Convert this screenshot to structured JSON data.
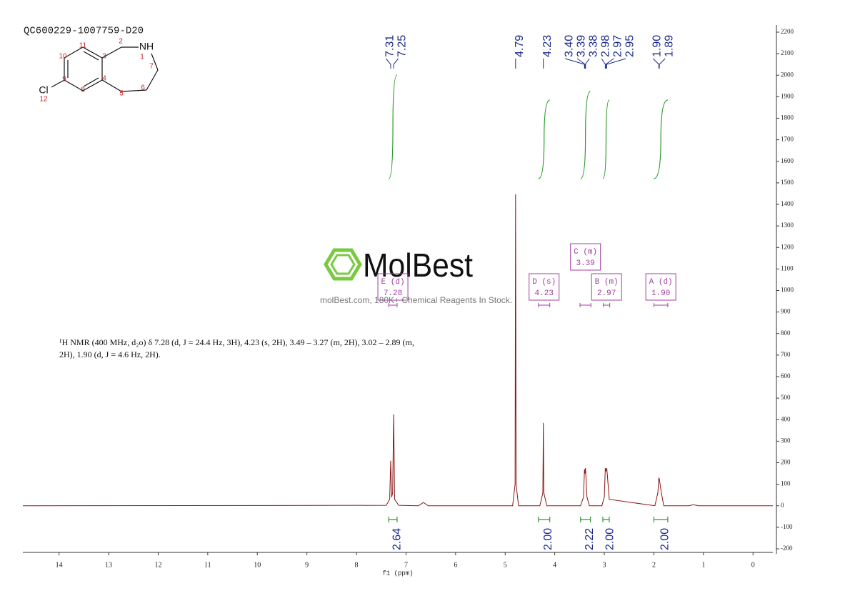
{
  "chart_data": {
    "type": "line",
    "title": "QC600229-1007759-D20",
    "xlabel": "f1 (ppm)",
    "xlim": [
      14.73,
      -0.4
    ],
    "xticks": [
      14,
      13,
      12,
      11,
      10,
      9,
      8,
      7,
      6,
      5,
      4,
      3,
      2,
      1,
      0
    ],
    "ylim": [
      -200,
      2200
    ],
    "yticks": [
      -200,
      -100,
      0,
      100,
      200,
      300,
      400,
      500,
      600,
      700,
      800,
      900,
      1000,
      1100,
      1200,
      1300,
      1400,
      1500,
      1600,
      1700,
      1800,
      1900,
      2000,
      2100,
      2200
    ],
    "y_axis_side": "right",
    "x": [
      14.73,
      7.4,
      7.33,
      7.31,
      7.29,
      7.27,
      7.25,
      7.23,
      7.15,
      6.75,
      6.65,
      6.55,
      4.85,
      4.8,
      4.79,
      4.78,
      4.73,
      4.3,
      4.24,
      4.23,
      4.22,
      4.16,
      3.48,
      3.42,
      3.4,
      3.39,
      3.38,
      3.35,
      3.3,
      3.05,
      3.0,
      2.98,
      2.97,
      2.95,
      2.9,
      1.98,
      1.92,
      1.9,
      1.89,
      1.85,
      1.8,
      1.3,
      1.2,
      1.1,
      -0.4
    ],
    "series": [
      {
        "color": "#8b1414",
        "values": [
          0,
          2,
          30,
          209,
          40,
          60,
          425,
          30,
          2,
          0,
          15,
          0,
          0,
          100,
          1447,
          100,
          0,
          0,
          60,
          385,
          60,
          0,
          0,
          40,
          170,
          150,
          175,
          40,
          0,
          0,
          40,
          175,
          160,
          175,
          30,
          0,
          60,
          130,
          125,
          60,
          0,
          0,
          5,
          0,
          0
        ]
      }
    ],
    "peak_labels": [
      7.31,
      7.25,
      4.79,
      4.23,
      {
        "value": 3.4,
        "label": "3.40"
      },
      3.39,
      3.38,
      2.98,
      2.97,
      2.95,
      {
        "value": 1.9,
        "label": "1.90"
      },
      1.89
    ],
    "peak_label_color": "#1c2a8c",
    "integrals": [
      {
        "from": 7.35,
        "to": 7.18,
        "value": 2.64
      },
      {
        "from": 4.33,
        "to": 4.1,
        "value": {
          "value": 2,
          "label": "2.00"
        }
      },
      {
        "from": 3.48,
        "to": 3.28,
        "value": 2.22
      },
      {
        "from": 3.03,
        "to": 2.9,
        "value": {
          "value": 2,
          "label": "2.00"
        }
      },
      {
        "from": 2.0,
        "to": 1.72,
        "value": {
          "value": 2,
          "label": "2.00"
        }
      }
    ],
    "integral_color": "#2e9a2e",
    "multiplets": [
      {
        "name": "E (d)",
        "shift": 7.28,
        "from": 7.35,
        "to": 7.18
      },
      {
        "name": "D (s)",
        "shift": 4.23,
        "from": 4.33,
        "to": 4.1
      },
      {
        "name": "C (m)",
        "shift": 3.39,
        "from": 3.49,
        "to": 3.27
      },
      {
        "name": "B (m)",
        "shift": 2.97,
        "from": 3.02,
        "to": 2.89
      },
      {
        "name": "A (d)",
        "shift": {
          "value": 1.9,
          "label": "1.90"
        },
        "from": 2.0,
        "to": 1.72
      }
    ],
    "multiplet_color": "#a040a0",
    "annotation": [
      "¹H NMR (400 MHz, d₂o) δ 7.28 (d, J = 24.4 Hz, 3H), 4.23 (s, 2H), 3.49 – 3.27 (m, 2H), 3.02 – 2.89 (m,",
      "2H), 1.90 (d, J = 4.6 Hz, 2H)."
    ]
  },
  "structure": {
    "atoms": [
      "NH",
      "Cl"
    ],
    "numbers": [
      "1",
      "2",
      "3",
      "4",
      "5",
      "6",
      "7",
      "8",
      "9",
      "10",
      "11",
      "12"
    ]
  },
  "watermark": {
    "brand": "MolBest",
    "tagline": "molBest.com, 180K+ Chemical Reagents In Stock."
  }
}
